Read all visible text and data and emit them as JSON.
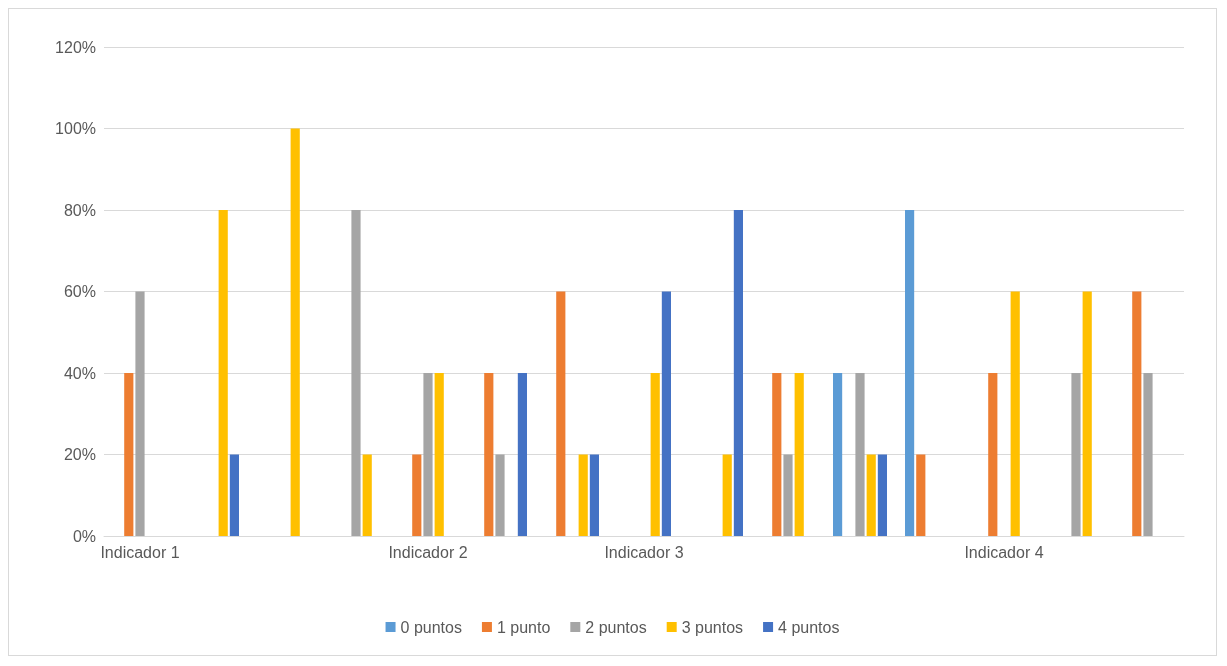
{
  "chart_data": {
    "type": "bar",
    "categories": [
      "Indicador 1",
      null,
      null,
      null,
      "Indicador 2",
      null,
      null,
      "Indicador 3",
      null,
      null,
      null,
      null,
      "Indicador 4",
      null,
      null
    ],
    "series": [
      {
        "name": "0 puntos",
        "color": "#5b9bd5",
        "values": [
          0,
          0,
          0,
          0,
          0,
          0,
          0,
          0,
          0,
          0,
          40,
          80,
          0,
          0,
          0
        ]
      },
      {
        "name": "1 punto",
        "color": "#ed7d31",
        "values": [
          40,
          0,
          0,
          0,
          20,
          40,
          60,
          0,
          0,
          40,
          0,
          20,
          40,
          0,
          60
        ]
      },
      {
        "name": "2 puntos",
        "color": "#a5a5a5",
        "values": [
          60,
          0,
          0,
          80,
          40,
          20,
          0,
          0,
          0,
          20,
          40,
          0,
          0,
          40,
          40
        ]
      },
      {
        "name": "3 puntos",
        "color": "#ffc000",
        "values": [
          0,
          80,
          100,
          20,
          40,
          0,
          20,
          40,
          20,
          40,
          20,
          0,
          60,
          60,
          0
        ]
      },
      {
        "name": "4 puntos",
        "color": "#4472c4",
        "values": [
          0,
          20,
          0,
          0,
          0,
          40,
          20,
          60,
          80,
          0,
          20,
          0,
          0,
          0,
          0
        ]
      }
    ],
    "ylim": [
      0,
      120
    ],
    "yticks": [
      {
        "value": 0,
        "label": "0%"
      },
      {
        "value": 20,
        "label": "20%"
      },
      {
        "value": 40,
        "label": "40%"
      },
      {
        "value": 60,
        "label": "60%"
      },
      {
        "value": 80,
        "label": "80%"
      },
      {
        "value": 100,
        "label": "100%"
      },
      {
        "value": 120,
        "label": "120%"
      }
    ],
    "grid": "y",
    "legend": "bottom"
  }
}
